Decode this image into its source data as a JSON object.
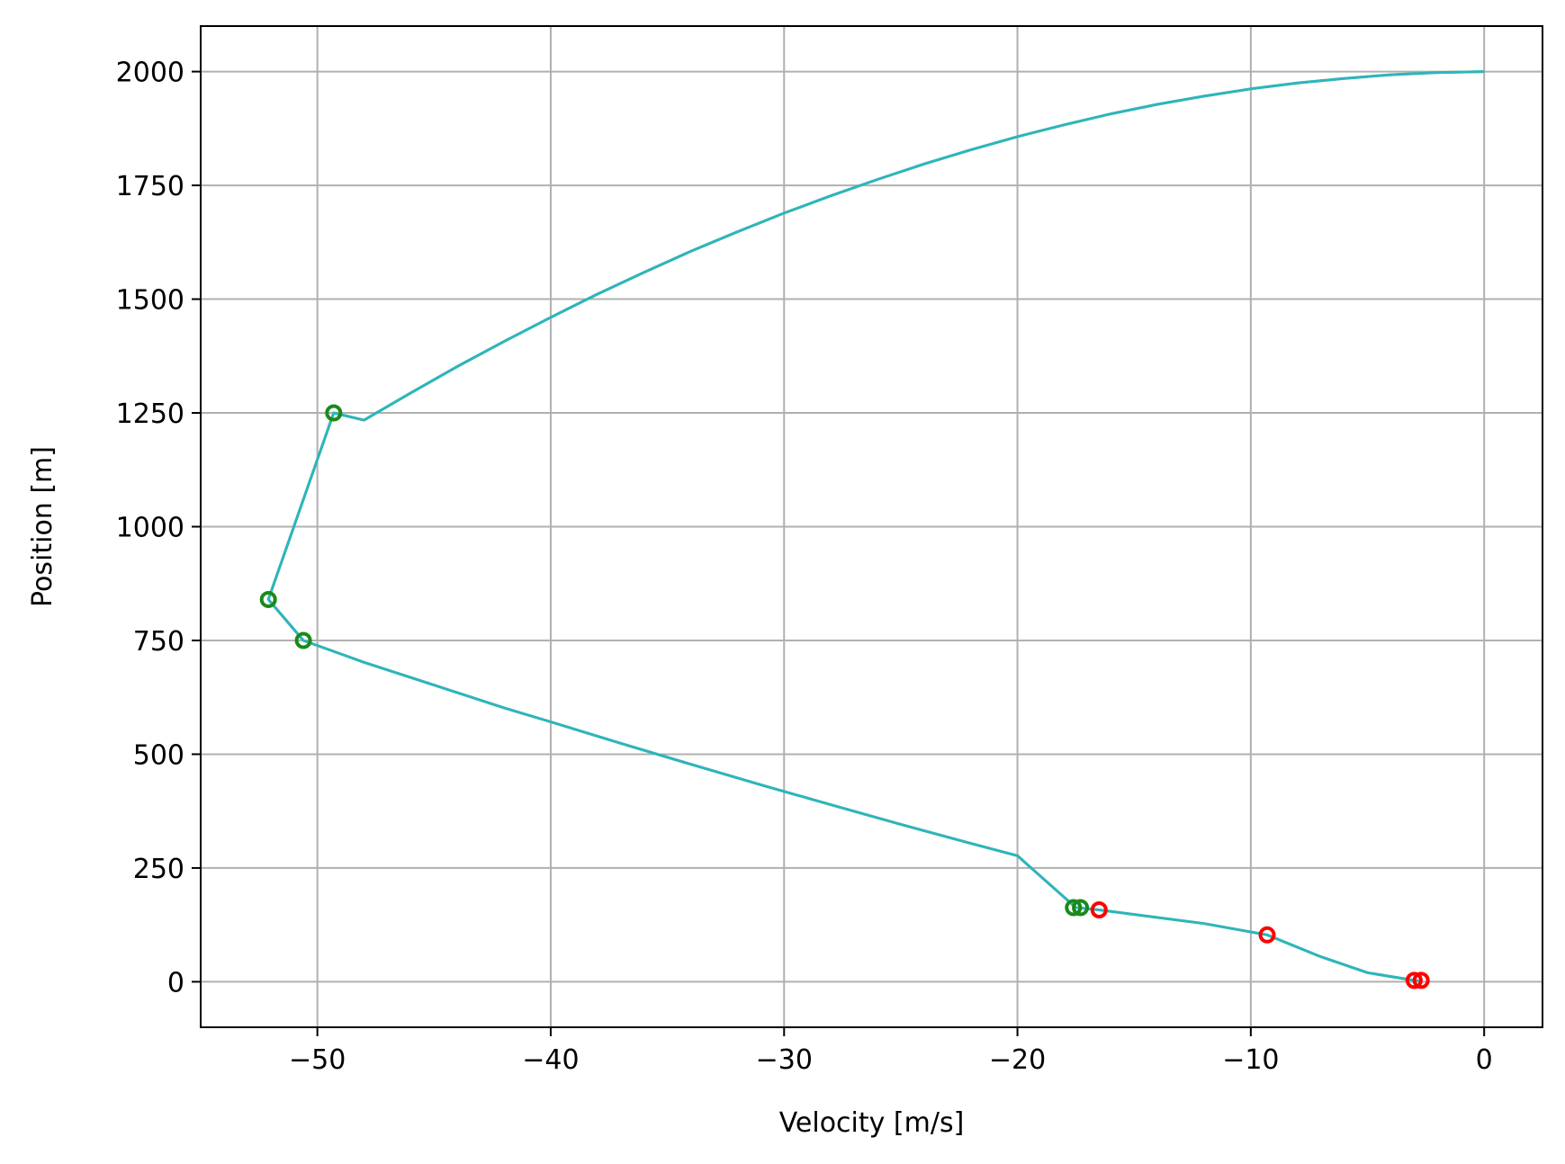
{
  "chart_data": {
    "type": "line",
    "xlabel": "Velocity [m/s]",
    "ylabel": "Position [m]",
    "xlim": [
      -55,
      2.5
    ],
    "ylim": [
      -100,
      2100
    ],
    "x_ticks": [
      -50,
      -40,
      -30,
      -20,
      -10,
      0
    ],
    "x_tick_labels": [
      "−50",
      "−40",
      "−30",
      "−20",
      "−10",
      "0"
    ],
    "y_ticks": [
      0,
      250,
      500,
      750,
      1000,
      1250,
      1500,
      1750,
      2000
    ],
    "y_tick_labels": [
      "0",
      "250",
      "500",
      "750",
      "1000",
      "1250",
      "1500",
      "1750",
      "2000"
    ],
    "grid": true,
    "colors": {
      "line": "#2cb5c0",
      "line_shadow": "#9ac23c",
      "green_marker": "#1a8a1a",
      "red_marker": "#ff0000",
      "grid": "#b0b0b0"
    },
    "series": [
      {
        "points": [
          [
            0,
            2000
          ],
          [
            -2,
            1998
          ],
          [
            -4,
            1993
          ],
          [
            -6,
            1985
          ],
          [
            -8,
            1975
          ],
          [
            -10,
            1962
          ],
          [
            -12,
            1946
          ],
          [
            -14,
            1928
          ],
          [
            -16,
            1907
          ],
          [
            -18,
            1883
          ],
          [
            -20,
            1857
          ],
          [
            -22,
            1828
          ],
          [
            -24,
            1797
          ],
          [
            -26,
            1763
          ],
          [
            -28,
            1727
          ],
          [
            -30,
            1689
          ],
          [
            -32,
            1648
          ],
          [
            -34,
            1605
          ],
          [
            -36,
            1559
          ],
          [
            -38,
            1511
          ],
          [
            -40,
            1460
          ],
          [
            -42,
            1407
          ],
          [
            -44,
            1352
          ],
          [
            -46,
            1294
          ],
          [
            -48,
            1234
          ],
          [
            -49.3,
            1250
          ],
          [
            -52.1,
            840
          ],
          [
            -50.6,
            750
          ],
          [
            -48,
            702
          ],
          [
            -45,
            652
          ],
          [
            -42,
            602
          ],
          [
            -40,
            571
          ],
          [
            -37,
            524
          ],
          [
            -34,
            478
          ],
          [
            -31,
            433
          ],
          [
            -28,
            389
          ],
          [
            -25,
            346
          ],
          [
            -22,
            304
          ],
          [
            -20,
            277
          ],
          [
            -17.5,
            163
          ],
          [
            -16.5,
            158
          ],
          [
            -12,
            128
          ],
          [
            -9.3,
            103
          ],
          [
            -7,
            55
          ],
          [
            -5,
            20
          ],
          [
            -3,
            3
          ],
          [
            -2.8,
            2
          ]
        ]
      }
    ],
    "markers": {
      "green": [
        [
          -49.3,
          1250
        ],
        [
          -52.1,
          840
        ],
        [
          -50.6,
          750
        ],
        [
          -17.6,
          163
        ],
        [
          -17.3,
          163
        ]
      ],
      "red": [
        [
          -16.5,
          158
        ],
        [
          -9.3,
          103
        ],
        [
          -3.0,
          3
        ],
        [
          -2.7,
          3
        ]
      ]
    }
  }
}
